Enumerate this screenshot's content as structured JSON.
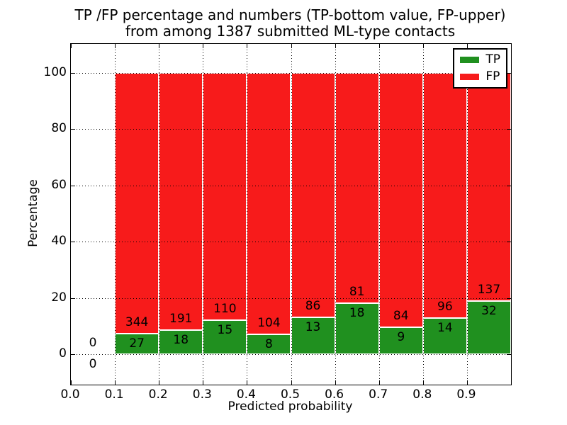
{
  "figure": {
    "title_line1": "TP /FP percentage and numbers (TP-bottom value, FP-upper)",
    "title_line2": "from among 1387 submitted ML-type contacts"
  },
  "chart_data": {
    "type": "bar",
    "stacked": true,
    "title": "TP /FP percentage and numbers (TP-bottom value, FP-upper) from among 1387 submitted ML-type contacts",
    "xlabel": "Predicted probability",
    "ylabel": "Percentage",
    "xlim": [
      0.0,
      1.0
    ],
    "y_axis_unit": "percent",
    "x_tick_labels": [
      "0.0",
      "0.1",
      "0.2",
      "0.3",
      "0.4",
      "0.5",
      "0.6",
      "0.7",
      "0.8",
      "0.9"
    ],
    "y_tick_values": [
      0,
      20,
      40,
      60,
      80,
      100
    ],
    "grid": "dotted",
    "legend_position": "upper right",
    "total_submitted": 1387,
    "bin_width": 0.1,
    "series": [
      {
        "name": "TP",
        "color": "#20901f"
      },
      {
        "name": "FP",
        "color": "#f71b1b"
      }
    ],
    "bins": [
      {
        "x_start": 0.0,
        "tp": 0,
        "fp": 0
      },
      {
        "x_start": 0.1,
        "tp": 27,
        "fp": 344
      },
      {
        "x_start": 0.2,
        "tp": 18,
        "fp": 191
      },
      {
        "x_start": 0.3,
        "tp": 15,
        "fp": 110
      },
      {
        "x_start": 0.4,
        "tp": 8,
        "fp": 104
      },
      {
        "x_start": 0.5,
        "tp": 13,
        "fp": 86
      },
      {
        "x_start": 0.6,
        "tp": 18,
        "fp": 81
      },
      {
        "x_start": 0.7,
        "tp": 9,
        "fp": 84
      },
      {
        "x_start": 0.8,
        "tp": 14,
        "fp": 96
      },
      {
        "x_start": 0.9,
        "tp": 32,
        "fp": 137
      }
    ]
  }
}
